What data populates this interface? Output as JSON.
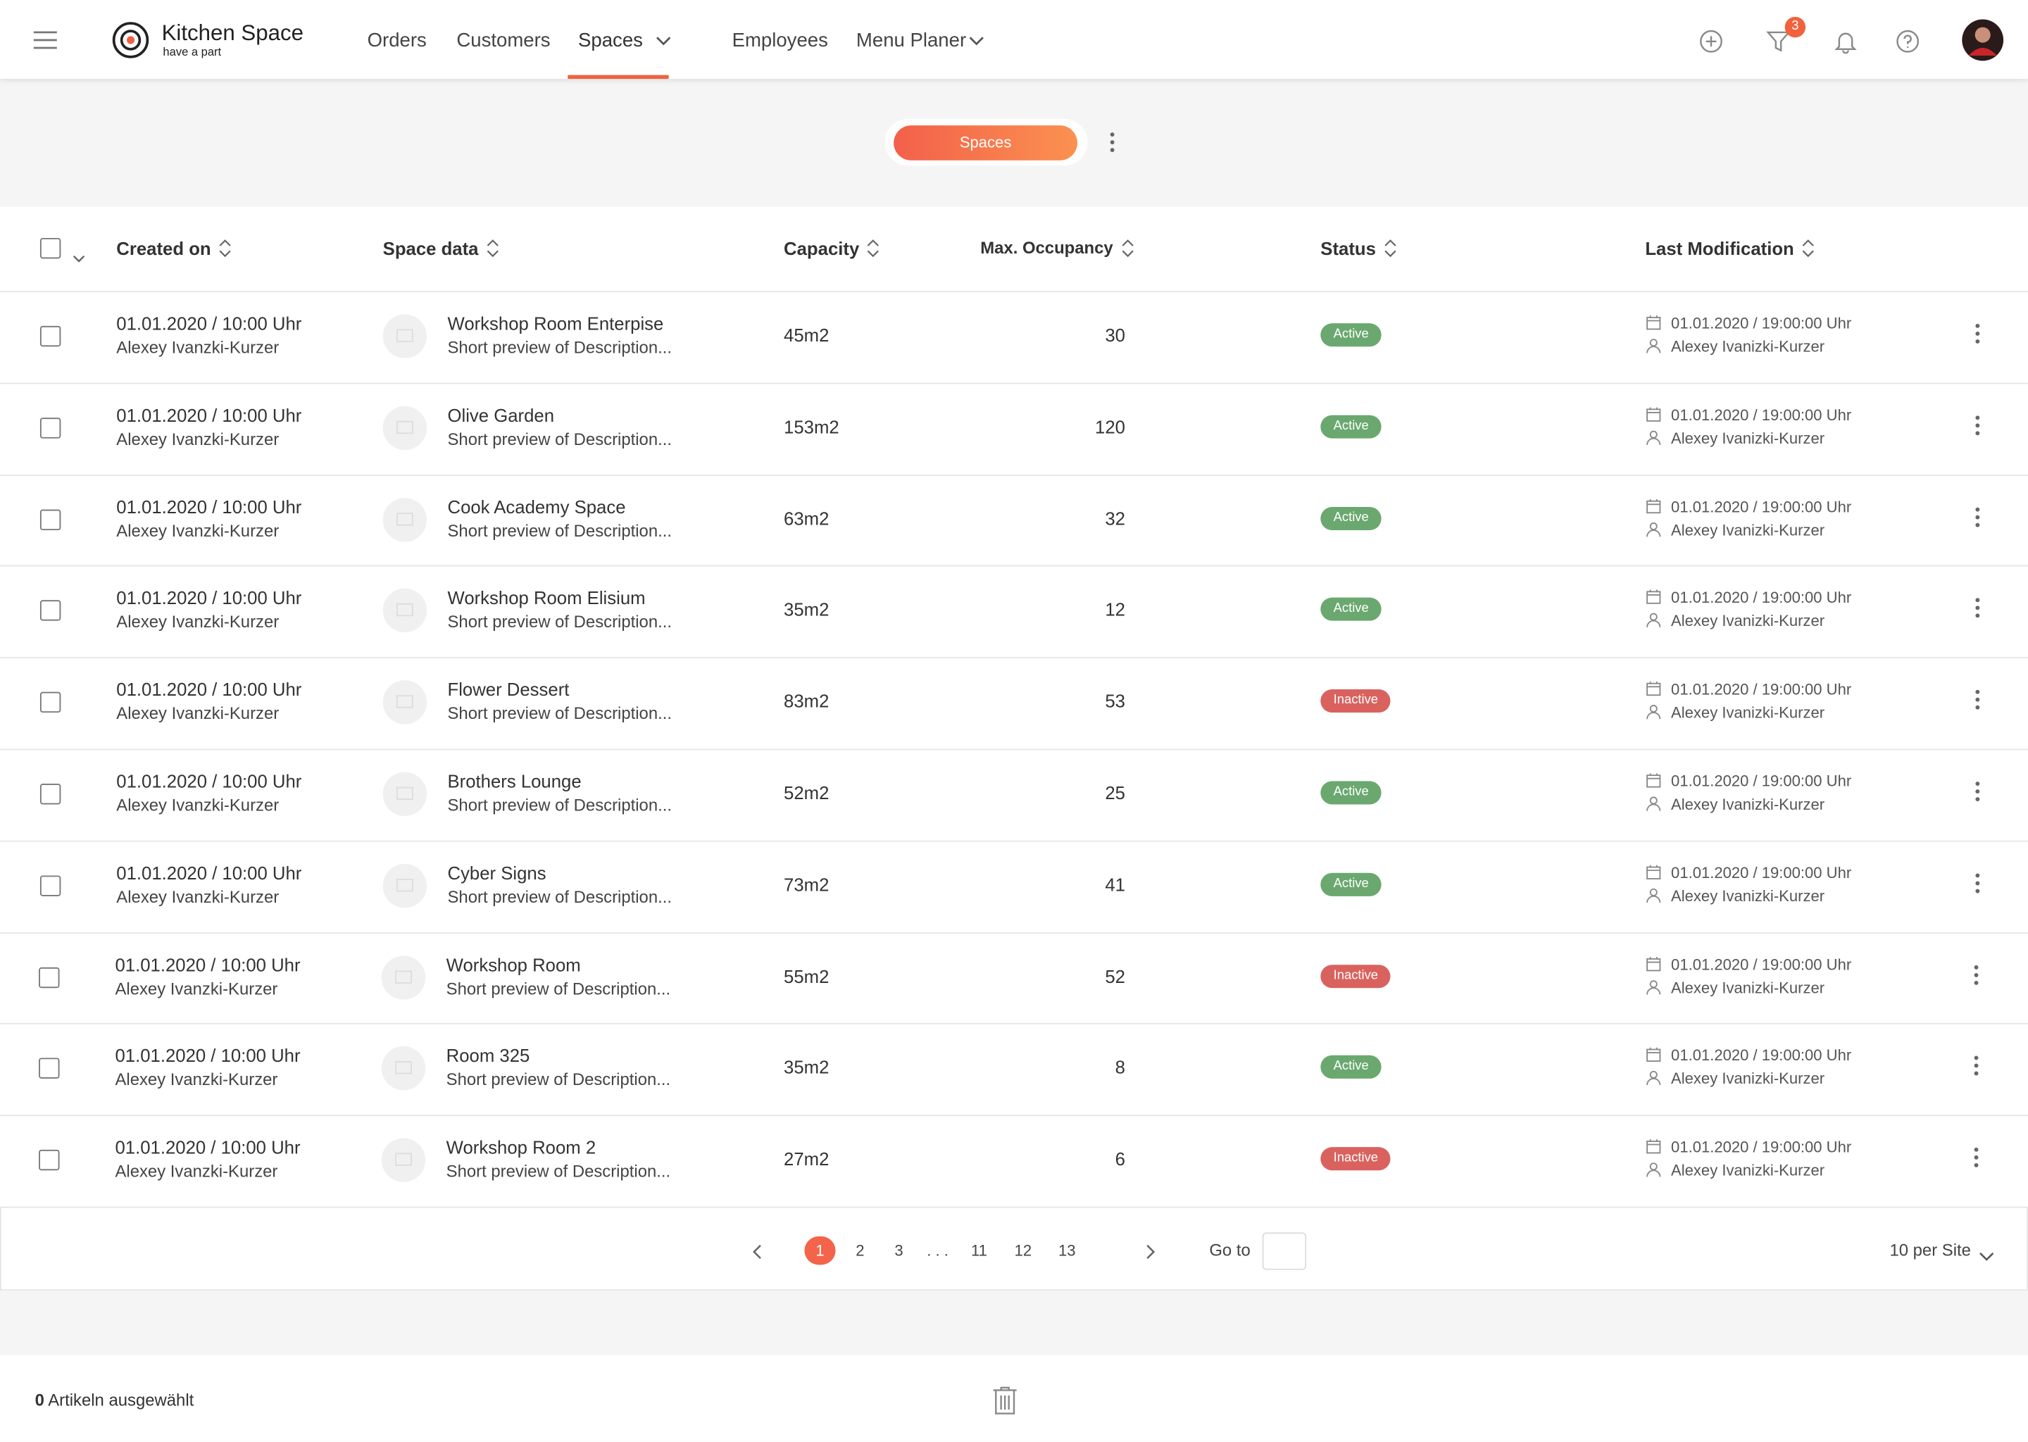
{
  "header": {
    "brand": "Kitchen Space",
    "tagline": "have a part",
    "nav": [
      "Orders",
      "Customers",
      "Spaces",
      "Employees",
      "Menu Planer"
    ],
    "filter_badge": "3"
  },
  "toolbar": {
    "tab": "Spaces"
  },
  "table": {
    "columns": [
      "Created on",
      "Space data",
      "Capacity",
      "Max. Occupancy",
      "Status",
      "Last Modification"
    ],
    "rows": [
      {
        "created": "01.01.2020  /  10:00 Uhr",
        "creator": "Alexey Ivanzki-Kurzer",
        "name": "Workshop Room Enterpise",
        "description": "Short preview of Description...",
        "capacity": "45m2",
        "occupancy": "30",
        "status": "Active",
        "status_color": "#6aa86f",
        "modified": "01.01.2020 / 19:00:00 Uhr",
        "modifier": "Alexey Ivanizki-Kurzer"
      },
      {
        "created": "01.01.2020  /  10:00 Uhr",
        "creator": "Alexey Ivanzki-Kurzer",
        "name": "Olive Garden",
        "description": "Short preview of Description...",
        "capacity": "153m2",
        "occupancy": "120",
        "status": "Active",
        "status_color": "#6aa86f",
        "modified": "01.01.2020 / 19:00:00 Uhr",
        "modifier": "Alexey Ivanizki-Kurzer"
      },
      {
        "created": "01.01.2020  /  10:00 Uhr",
        "creator": "Alexey Ivanzki-Kurzer",
        "name": "Cook Academy Space",
        "description": "Short preview of Description...",
        "capacity": "63m2",
        "occupancy": "32",
        "status": "Active",
        "status_color": "#6aa86f",
        "modified": "01.01.2020 / 19:00:00 Uhr",
        "modifier": "Alexey Ivanizki-Kurzer"
      },
      {
        "created": "01.01.2020  /  10:00 Uhr",
        "creator": "Alexey Ivanzki-Kurzer",
        "name": "Workshop Room Elisium",
        "description": "Short preview of Description...",
        "capacity": "35m2",
        "occupancy": "12",
        "status": "Active",
        "status_color": "#6aa86f",
        "modified": "01.01.2020 / 19:00:00 Uhr",
        "modifier": "Alexey Ivanizki-Kurzer"
      },
      {
        "created": "01.01.2020  /  10:00 Uhr",
        "creator": "Alexey Ivanzki-Kurzer",
        "name": "Flower Dessert",
        "description": "Short preview of Description...",
        "capacity": "83m2",
        "occupancy": "53",
        "status": "Inactive",
        "status_color": "#d9625f",
        "modified": "01.01.2020 / 19:00:00 Uhr",
        "modifier": "Alexey Ivanizki-Kurzer"
      },
      {
        "created": "01.01.2020  /  10:00 Uhr",
        "creator": "Alexey Ivanzki-Kurzer",
        "name": "Brothers Lounge",
        "description": "Short preview of Description...",
        "capacity": "52m2",
        "occupancy": "25",
        "status": "Active",
        "status_color": "#6aa86f",
        "modified": "01.01.2020 / 19:00:00 Uhr",
        "modifier": "Alexey Ivanizki-Kurzer"
      },
      {
        "created": "01.01.2020  /  10:00 Uhr",
        "creator": "Alexey Ivanzki-Kurzer",
        "name": "Cyber Signs",
        "description": "Short preview of Description...",
        "capacity": "73m2",
        "occupancy": "41",
        "status": "Active",
        "status_color": "#6aa86f",
        "modified": "01.01.2020 / 19:00:00 Uhr",
        "modifier": "Alexey Ivanizki-Kurzer"
      },
      {
        "created": "01.01.2020  /  10:00 Uhr",
        "creator": "Alexey Ivanzki-Kurzer",
        "name": "Workshop Room",
        "description": "Short preview of Description...",
        "capacity": "55m2",
        "occupancy": "52",
        "status": "Inactive",
        "status_color": "#d9625f",
        "modified": "01.01.2020 / 19:00:00 Uhr",
        "modifier": "Alexey Ivanizki-Kurzer"
      },
      {
        "created": "01.01.2020  /  10:00 Uhr",
        "creator": "Alexey Ivanzki-Kurzer",
        "name": "Room 325",
        "description": "Short preview of Description...",
        "capacity": "35m2",
        "occupancy": "8",
        "status": "Active",
        "status_color": "#6aa86f",
        "modified": "01.01.2020 / 19:00:00 Uhr",
        "modifier": "Alexey Ivanizki-Kurzer"
      },
      {
        "created": "01.01.2020  /  10:00 Uhr",
        "creator": "Alexey Ivanzki-Kurzer",
        "name": "Workshop Room 2",
        "description": "Short preview of Description...",
        "capacity": "27m2",
        "occupancy": "6",
        "status": "Inactive",
        "status_color": "#d9625f",
        "modified": "01.01.2020 / 19:00:00 Uhr",
        "modifier": "Alexey Ivanizki-Kurzer"
      }
    ]
  },
  "pagination": {
    "pages": [
      "1",
      "2",
      "3",
      ". . .",
      "11",
      "12",
      "13"
    ],
    "goto": "Go to",
    "per_page": "10 per Site"
  },
  "footer": {
    "selected_count": "0",
    "selected_label": "Artikeln ausgewählt"
  }
}
